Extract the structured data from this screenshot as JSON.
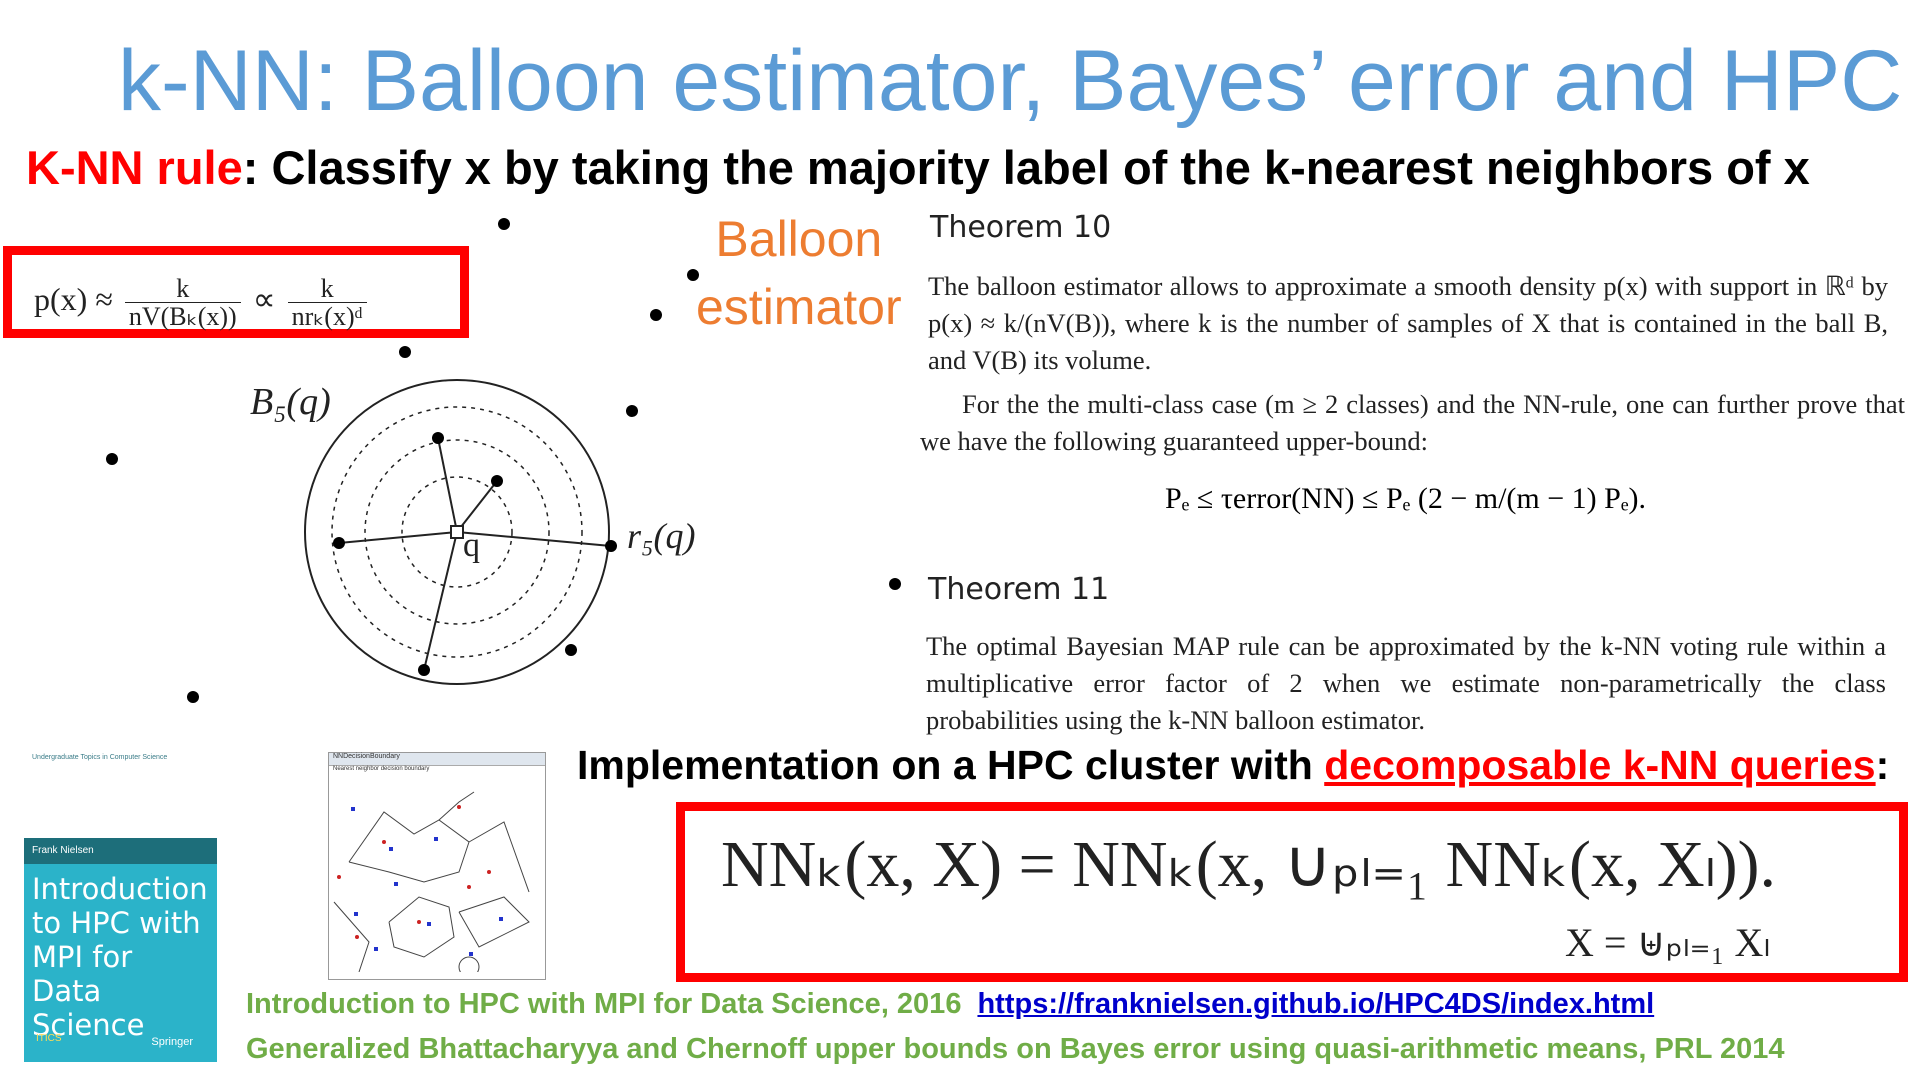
{
  "title": "k-NN: Balloon estimator, Bayes’ error and HPC",
  "rule": {
    "label": "K-NN rule",
    "text": ": Classify x by taking the majority label of the k-nearest neighbors of x"
  },
  "formula_box": {
    "lhs": "p(x) ≈",
    "f1_num": "k",
    "f1_den": "nV(Bₖ(x))",
    "prop": "∝",
    "f2_num": "k",
    "f2_den": "nrₖ(x)ᵈ"
  },
  "balloon": {
    "line1": "Balloon",
    "line2": "estimator"
  },
  "diagram": {
    "ball_label": "B₅(q)",
    "radius_label": "r₅(q)",
    "query_label": "q"
  },
  "theorem10": {
    "heading": "Theorem 10",
    "text": "The balloon estimator allows to approximate a smooth density p(x) with support in ℝᵈ by p(x) ≈ k/(nV(B)), where k is the number of samples of X that is contained in the ball B, and V(B) its volume.",
    "multi": "For the the multi-class case (m ≥ 2 classes) and the NN-rule, one can further prove that we have the following guaranteed upper-bound:",
    "bound": "Pₑ ≤ τerror(NN) ≤ Pₑ (2 − m/(m − 1) Pₑ)."
  },
  "theorem11": {
    "heading": "Theorem 11",
    "text": "The optimal Bayesian MAP rule can be approximated by the k-NN voting rule within a multiplicative error factor of 2 when we estimate non-parametrically the class probabilities using the k-NN balloon estimator."
  },
  "implementation": {
    "text": "Implementation on a HPC cluster with ",
    "link": "decomposable k-NN queries",
    "suffix": ":"
  },
  "nn_formula": {
    "main": "NNₖ(x, X) = NNₖ(x, ∪ₚₗ₌₁ NNₖ(x, Xₗ)).",
    "union": "X = ⊎ₚₗ₌₁ Xₗ"
  },
  "book": {
    "series": "Undergraduate Topics in Computer Science",
    "author": "Frank Nielsen",
    "title": "Introduction to HPC with MPI for Data Science",
    "publisher": "Springer"
  },
  "screenshot": {
    "window_title": "NNDecisionBoundary",
    "caption": "Nearest neighbor decision boundary"
  },
  "references": {
    "ref1": "Introduction to HPC with MPI for Data Science, 2016",
    "ref1_url": "https://franknielsen.github.io/HPC4DS/index.html",
    "ref2": "Generalized Bhattacharyya and Chernoff upper bounds on Bayes error using quasi-arithmetic means, PRL 2014"
  },
  "colors": {
    "title": "#5b9bd5",
    "accent_red": "#ff0000",
    "balloon": "#ed7d31",
    "reference_green": "#70ad47",
    "link": "#0000cc"
  }
}
